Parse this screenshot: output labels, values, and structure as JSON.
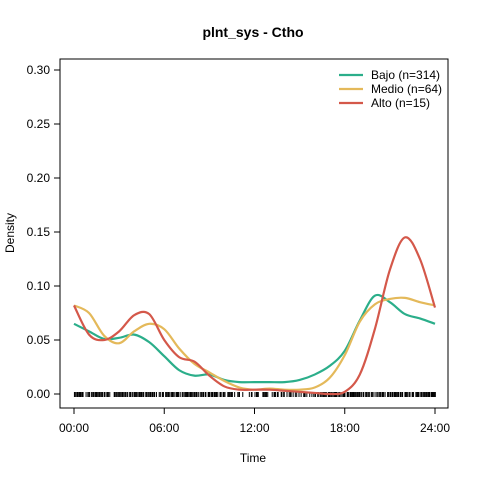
{
  "chart_data": {
    "type": "line",
    "title": "plnt_sys - Ctho",
    "xlabel": "Time",
    "ylabel": "Density",
    "xlim": [
      0,
      24
    ],
    "ylim": [
      0,
      0.3
    ],
    "x_ticks": [
      0,
      6,
      12,
      18,
      24
    ],
    "x_tick_labels": [
      "00:00",
      "06:00",
      "12:00",
      "18:00",
      "24:00"
    ],
    "y_ticks": [
      0,
      0.05,
      0.1,
      0.15,
      0.2,
      0.25,
      0.3
    ],
    "y_tick_labels": [
      "0.00",
      "0.05",
      "0.10",
      "0.15",
      "0.20",
      "0.25",
      "0.30"
    ],
    "grid": false,
    "legend_position": "top-right",
    "series": [
      {
        "name": "Bajo (n=314)",
        "color": "#2BAE8A",
        "x": [
          0,
          1,
          2,
          3,
          4,
          5,
          6,
          7,
          8,
          9,
          10,
          11,
          12,
          13,
          14,
          15,
          16,
          17,
          18,
          19,
          20,
          21,
          22,
          23,
          24
        ],
        "y": [
          0.065,
          0.058,
          0.051,
          0.052,
          0.055,
          0.048,
          0.035,
          0.022,
          0.017,
          0.018,
          0.013,
          0.011,
          0.011,
          0.011,
          0.011,
          0.013,
          0.018,
          0.026,
          0.04,
          0.068,
          0.091,
          0.085,
          0.074,
          0.07,
          0.065
        ]
      },
      {
        "name": "Medio (n=64)",
        "color": "#E4B95A",
        "x": [
          0,
          1,
          2,
          3,
          4,
          5,
          6,
          7,
          8,
          9,
          10,
          11,
          12,
          13,
          14,
          15,
          16,
          17,
          18,
          19,
          20,
          21,
          22,
          23,
          24
        ],
        "y": [
          0.082,
          0.075,
          0.054,
          0.047,
          0.058,
          0.065,
          0.06,
          0.042,
          0.028,
          0.02,
          0.012,
          0.006,
          0.004,
          0.005,
          0.004,
          0.004,
          0.006,
          0.015,
          0.036,
          0.067,
          0.083,
          0.088,
          0.089,
          0.085,
          0.082
        ]
      },
      {
        "name": "Alto (n=15)",
        "color": "#D4584A",
        "x": [
          0,
          1,
          2,
          3,
          4,
          5,
          6,
          7,
          8,
          9,
          10,
          11,
          12,
          13,
          14,
          15,
          16,
          17,
          18,
          19,
          20,
          21,
          22,
          23,
          24
        ],
        "y": [
          0.082,
          0.055,
          0.05,
          0.058,
          0.073,
          0.074,
          0.05,
          0.034,
          0.03,
          0.017,
          0.007,
          0.004,
          0.004,
          0.004,
          0.003,
          0.002,
          0.001,
          0.0,
          0.002,
          0.018,
          0.06,
          0.115,
          0.145,
          0.125,
          0.08
        ]
      }
    ]
  }
}
